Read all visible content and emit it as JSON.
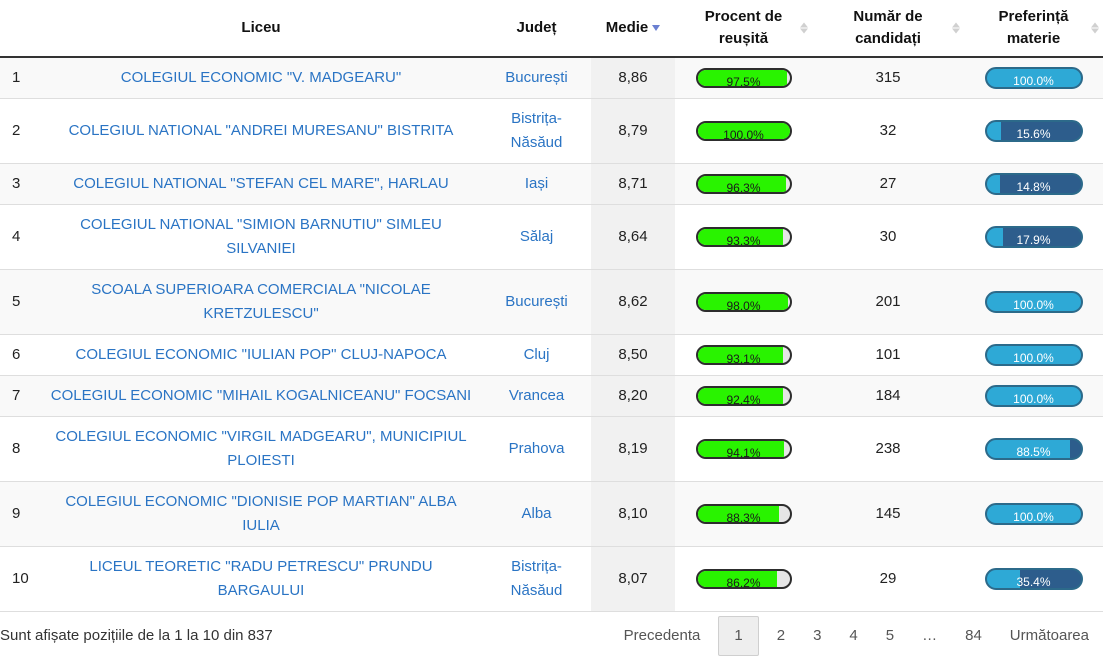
{
  "columns": {
    "liceu": "Liceu",
    "judet": "Județ",
    "medie": "Medie",
    "procent_1": "Procent de",
    "procent_2": "reușită",
    "numar_1": "Număr de",
    "numar_2": "candidați",
    "pref_1": "Preferință",
    "pref_2": "materie"
  },
  "rows": [
    {
      "idx": "1",
      "liceu": "COLEGIUL ECONOMIC \"V. MADGEARU\"",
      "judet": "București",
      "medie": "8,86",
      "procent_label": "97.5%",
      "procent": 97.5,
      "candidati": "315",
      "pref_label": "100.0%",
      "pref": 100.0
    },
    {
      "idx": "2",
      "liceu": "COLEGIUL NATIONAL \"ANDREI MURESANU\" BISTRITA",
      "judet": "Bistrița-Năsăud",
      "medie": "8,79",
      "procent_label": "100.0%",
      "procent": 100.0,
      "candidati": "32",
      "pref_label": "15.6%",
      "pref": 15.6
    },
    {
      "idx": "3",
      "liceu": "COLEGIUL NATIONAL \"STEFAN CEL MARE\", HARLAU",
      "judet": "Iași",
      "medie": "8,71",
      "procent_label": "96.3%",
      "procent": 96.3,
      "candidati": "27",
      "pref_label": "14.8%",
      "pref": 14.8
    },
    {
      "idx": "4",
      "liceu": "COLEGIUL NATIONAL \"SIMION BARNUTIU\" SIMLEU SILVANIEI",
      "judet": "Sălaj",
      "medie": "8,64",
      "procent_label": "93.3%",
      "procent": 93.3,
      "candidati": "30",
      "pref_label": "17.9%",
      "pref": 17.9
    },
    {
      "idx": "5",
      "liceu": "SCOALA SUPERIOARA COMERCIALA \"NICOLAE KRETZULESCU\"",
      "judet": "București",
      "medie": "8,62",
      "procent_label": "98.0%",
      "procent": 98.0,
      "candidati": "201",
      "pref_label": "100.0%",
      "pref": 100.0
    },
    {
      "idx": "6",
      "liceu": "COLEGIUL ECONOMIC \"IULIAN POP\" CLUJ-NAPOCA",
      "judet": "Cluj",
      "medie": "8,50",
      "procent_label": "93.1%",
      "procent": 93.1,
      "candidati": "101",
      "pref_label": "100.0%",
      "pref": 100.0
    },
    {
      "idx": "7",
      "liceu": "COLEGIUL ECONOMIC \"MIHAIL KOGALNICEANU\" FOCSANI",
      "judet": "Vrancea",
      "medie": "8,20",
      "procent_label": "92.4%",
      "procent": 92.4,
      "candidati": "184",
      "pref_label": "100.0%",
      "pref": 100.0
    },
    {
      "idx": "8",
      "liceu": "COLEGIUL ECONOMIC \"VIRGIL MADGEARU\", MUNICIPIUL PLOIESTI",
      "judet": "Prahova",
      "medie": "8,19",
      "procent_label": "94.1%",
      "procent": 94.1,
      "candidati": "238",
      "pref_label": "88.5%",
      "pref": 88.5
    },
    {
      "idx": "9",
      "liceu": "COLEGIUL ECONOMIC \"DIONISIE POP MARTIAN\" ALBA IULIA",
      "judet": "Alba",
      "medie": "8,10",
      "procent_label": "88.3%",
      "procent": 88.3,
      "candidati": "145",
      "pref_label": "100.0%",
      "pref": 100.0
    },
    {
      "idx": "10",
      "liceu": "LICEUL TEORETIC \"RADU PETRESCU\" PRUNDU BARGAULUI",
      "judet": "Bistrița-Năsăud",
      "medie": "8,07",
      "procent_label": "86.2%",
      "procent": 86.2,
      "candidati": "29",
      "pref_label": "35.4%",
      "pref": 35.4
    }
  ],
  "footer": {
    "info": "Sunt afișate pozițiile de la 1 la 10 din 837",
    "prev": "Precedenta",
    "pages": [
      "1",
      "2",
      "3",
      "4",
      "5",
      "…",
      "84"
    ],
    "next": "Următoarea"
  },
  "colors": {
    "link": "#2a74c4",
    "procent_fill": "#29f300",
    "pref_fill": "#2ea9d6",
    "pref_bg": "#2d5d8c"
  }
}
